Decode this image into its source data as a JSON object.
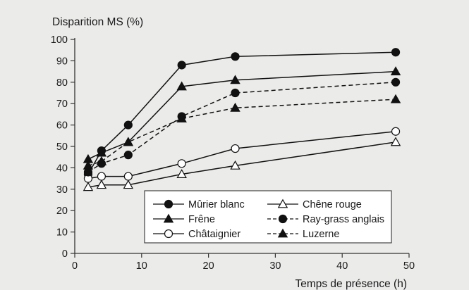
{
  "chart_data": {
    "type": "line",
    "title": "",
    "ylabel": "Disparition MS (%)",
    "xlabel": "Temps de présence (h)",
    "xlim": [
      0,
      50
    ],
    "ylim": [
      0,
      100
    ],
    "xticks": [
      0,
      10,
      20,
      30,
      40,
      50
    ],
    "yticks": [
      0,
      10,
      20,
      30,
      40,
      50,
      60,
      70,
      80,
      90,
      100
    ],
    "grid": false,
    "legend_position": "bottom-right",
    "series": [
      {
        "name": "Mûrier blanc",
        "marker": "filled-circle",
        "line": "solid",
        "x": [
          2,
          4,
          8,
          16,
          24,
          48
        ],
        "y": [
          37,
          48,
          60,
          88,
          92,
          94
        ]
      },
      {
        "name": "Frêne",
        "marker": "filled-triangle",
        "line": "solid",
        "x": [
          2,
          4,
          8,
          16,
          24,
          48
        ],
        "y": [
          44,
          47,
          52,
          78,
          81,
          85
        ]
      },
      {
        "name": "Châtaignier",
        "marker": "open-circle",
        "line": "solid",
        "x": [
          2,
          4,
          8,
          16,
          24,
          48
        ],
        "y": [
          35,
          36,
          36,
          42,
          49,
          57
        ]
      },
      {
        "name": "Chêne rouge",
        "marker": "open-triangle",
        "line": "solid",
        "x": [
          2,
          4,
          8,
          16,
          24,
          48
        ],
        "y": [
          31,
          32,
          32,
          37,
          41,
          52
        ]
      },
      {
        "name": "Ray-grass anglais",
        "marker": "filled-circle",
        "line": "dashed",
        "x": [
          2,
          4,
          8,
          16,
          24,
          48
        ],
        "y": [
          38,
          42,
          46,
          64,
          75,
          80
        ]
      },
      {
        "name": "Luzerne",
        "marker": "filled-triangle",
        "line": "dashed",
        "x": [
          2,
          4,
          8,
          16,
          24,
          48
        ],
        "y": [
          41,
          43,
          52,
          63,
          68,
          72
        ]
      }
    ],
    "legend_order": [
      0,
      3,
      1,
      4,
      2,
      5
    ]
  }
}
